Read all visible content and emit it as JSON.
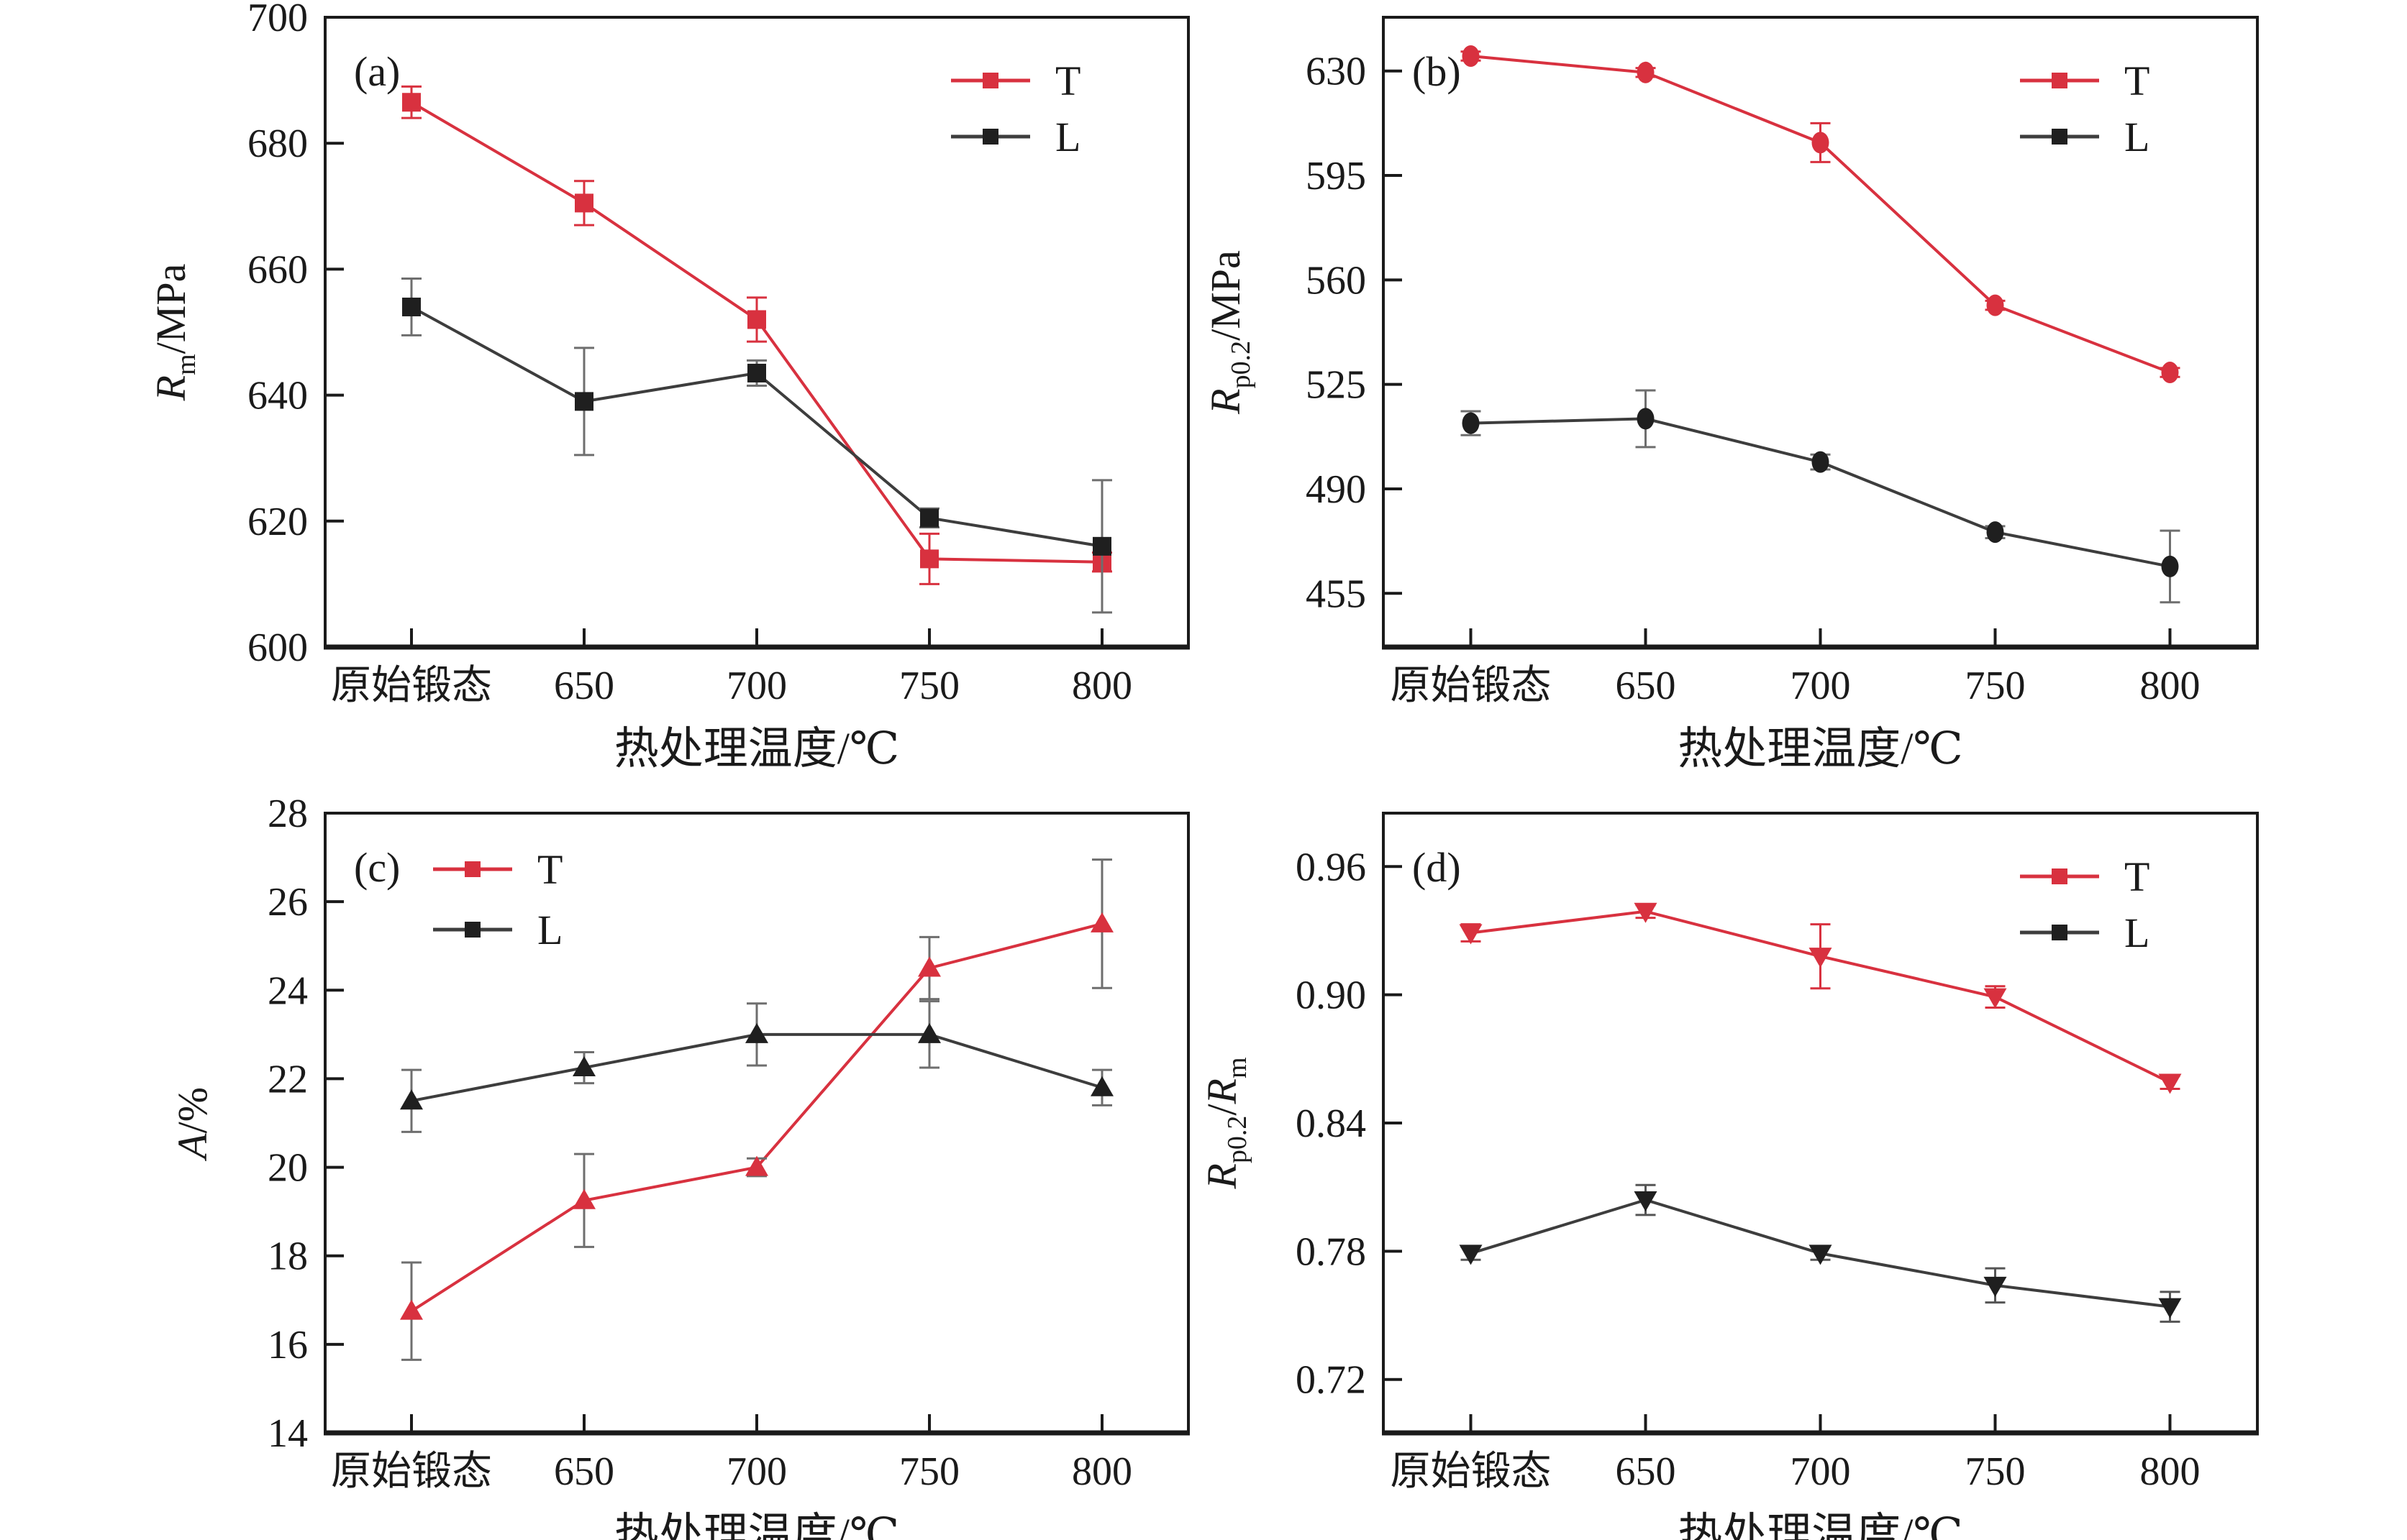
{
  "text_color": "#1a1a1a",
  "axis_color": "#1a1a1a",
  "categories": [
    "原始锻态",
    "650",
    "700",
    "750",
    "800"
  ],
  "xlabel": "热处理温度/℃",
  "legend_labels": [
    "T",
    "L"
  ],
  "series_colors": {
    "T": "#d8313f",
    "L": "#1f1f1f"
  },
  "chart_data": [
    {
      "id": "a",
      "panel_label": "(a)",
      "type": "line",
      "marker": "square",
      "ylabel_segments": [
        {
          "text": "R",
          "style": "italic"
        },
        {
          "text": "m",
          "style": "sub"
        },
        {
          "text": "/MPa",
          "style": "normal"
        }
      ],
      "ylim": [
        600,
        700
      ],
      "yticks": [
        "600",
        "620",
        "640",
        "660",
        "680",
        "700"
      ],
      "legend_position": "top-right",
      "series": [
        {
          "name": "T",
          "color": "#d8313f",
          "line_color": "#d8313f",
          "error_color": "#d8313f",
          "values": [
            686.5,
            670.5,
            652,
            614,
            613.5
          ],
          "errors": [
            2.5,
            3.5,
            3.5,
            4,
            1.5
          ]
        },
        {
          "name": "L",
          "color": "#1f1f1f",
          "line_color": "#3d3d3d",
          "error_color": "#6e6e6e",
          "values": [
            654,
            639,
            643.5,
            620.5,
            616
          ],
          "errors": [
            4.5,
            8.5,
            2,
            1.5,
            10.5
          ]
        }
      ]
    },
    {
      "id": "b",
      "panel_label": "(b)",
      "type": "line",
      "marker": "circle",
      "ylabel_segments": [
        {
          "text": "R",
          "style": "italic"
        },
        {
          "text": "p0.2",
          "style": "sub"
        },
        {
          "text": "/MPa",
          "style": "normal"
        }
      ],
      "ylim": [
        437,
        648
      ],
      "yticks": [
        "455",
        "490",
        "525",
        "560",
        "595",
        "630"
      ],
      "legend_position": "top-right",
      "series": [
        {
          "name": "T",
          "color": "#d8313f",
          "line_color": "#d8313f",
          "error_color": "#d8313f",
          "values": [
            635,
            629.5,
            606,
            551.5,
            529
          ],
          "errors": [
            1.5,
            1.5,
            6.5,
            1.5,
            1.5
          ]
        },
        {
          "name": "L",
          "color": "#1f1f1f",
          "line_color": "#3d3d3d",
          "error_color": "#6e6e6e",
          "values": [
            512,
            513.5,
            499,
            475.5,
            464
          ],
          "errors": [
            4,
            9.5,
            2.5,
            2,
            12
          ]
        }
      ]
    },
    {
      "id": "c",
      "panel_label": "(c)",
      "type": "line",
      "marker": "triangle-up",
      "ylabel_segments": [
        {
          "text": "A",
          "style": "italic"
        },
        {
          "text": "/%",
          "style": "normal"
        }
      ],
      "ylim": [
        14,
        28
      ],
      "yticks": [
        "14",
        "16",
        "18",
        "20",
        "22",
        "24",
        "26",
        "28"
      ],
      "legend_position": "top-left",
      "series": [
        {
          "name": "T",
          "color": "#d8313f",
          "line_color": "#d8313f",
          "error_color": "#6e6e6e",
          "values": [
            16.75,
            19.25,
            20,
            24.5,
            25.5
          ],
          "errors": [
            1.1,
            1.05,
            0.2,
            0.7,
            1.45
          ]
        },
        {
          "name": "L",
          "color": "#1f1f1f",
          "line_color": "#3d3d3d",
          "error_color": "#6e6e6e",
          "values": [
            21.5,
            22.25,
            23,
            23,
            21.8
          ],
          "errors": [
            0.7,
            0.35,
            0.7,
            0.75,
            0.4
          ]
        }
      ]
    },
    {
      "id": "d",
      "panel_label": "(d)",
      "type": "line",
      "marker": "triangle-down",
      "ylabel_segments": [
        {
          "text": "R",
          "style": "italic"
        },
        {
          "text": "p0.2",
          "style": "sub"
        },
        {
          "text": "/",
          "style": "normal"
        },
        {
          "text": "R",
          "style": "italic"
        },
        {
          "text": "m",
          "style": "sub"
        }
      ],
      "ylim": [
        0.695,
        0.985
      ],
      "yticks": [
        "0.72",
        "0.78",
        "0.84",
        "0.90",
        "0.96"
      ],
      "legend_position": "top-right",
      "series": [
        {
          "name": "T",
          "color": "#d8313f",
          "line_color": "#d8313f",
          "error_color": "#d8313f",
          "values": [
            0.929,
            0.939,
            0.918,
            0.899,
            0.859
          ],
          "errors": [
            0.004,
            0.003,
            0.015,
            0.005,
            0.003
          ]
        },
        {
          "name": "L",
          "color": "#1f1f1f",
          "line_color": "#3d3d3d",
          "error_color": "#555555",
          "values": [
            0.779,
            0.804,
            0.779,
            0.764,
            0.754
          ],
          "errors": [
            0.003,
            0.007,
            0.003,
            0.008,
            0.007
          ]
        }
      ]
    }
  ]
}
